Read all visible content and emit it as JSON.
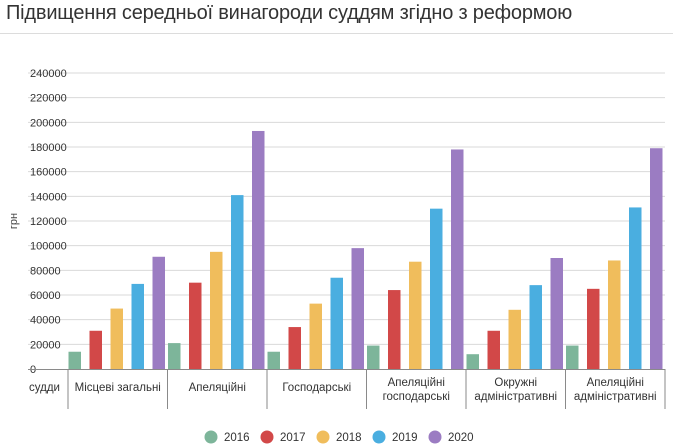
{
  "chart_data": {
    "type": "bar",
    "title": "Підвищення середньої винагороди суддям згідно з реформою",
    "ylabel": "грн",
    "xlabel": "судди",
    "ylim": [
      0,
      240000
    ],
    "yticks": [
      "0",
      "20000",
      "40000",
      "60000",
      "80000",
      "100000",
      "120000",
      "140000",
      "160000",
      "180000",
      "200000",
      "220000",
      "240000"
    ],
    "categories": [
      [
        "Місцеві загальні"
      ],
      [
        "Апеляційні"
      ],
      [
        "Господарські"
      ],
      [
        "Апеляційні",
        "господарські"
      ],
      [
        "Окружні",
        "адміністративні"
      ],
      [
        "Апеляційні",
        "адміністративні"
      ]
    ],
    "series": [
      {
        "name": "2016",
        "color": "#7db59a",
        "values": [
          14000,
          21000,
          14000,
          19000,
          12000,
          19000
        ]
      },
      {
        "name": "2017",
        "color": "#d24848",
        "values": [
          31000,
          70000,
          34000,
          64000,
          31000,
          65000
        ]
      },
      {
        "name": "2018",
        "color": "#f0bd5c",
        "values": [
          49000,
          95000,
          53000,
          87000,
          48000,
          88000
        ]
      },
      {
        "name": "2019",
        "color": "#4aaee0",
        "values": [
          69000,
          141000,
          74000,
          130000,
          68000,
          131000
        ]
      },
      {
        "name": "2020",
        "color": "#9b7cc2",
        "values": [
          91000,
          193000,
          98000,
          178000,
          90000,
          179000
        ]
      }
    ],
    "grid": true,
    "legend_position": "bottom"
  }
}
